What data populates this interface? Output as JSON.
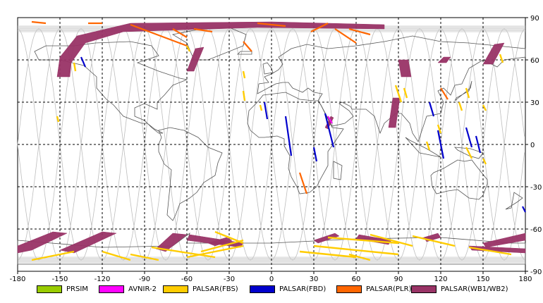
{
  "chart_data": {
    "type": "map",
    "title": "",
    "projection": "equirectangular",
    "xlim": [
      -180,
      180
    ],
    "ylim": [
      -90,
      90
    ],
    "xticks": [
      -180,
      -150,
      -120,
      -90,
      -60,
      -30,
      0,
      30,
      60,
      90,
      120,
      150,
      180
    ],
    "yticks": [
      90,
      60,
      30,
      0,
      -30,
      -60,
      -90
    ],
    "xtick_labels": [
      "-180",
      "-150",
      "-120",
      "-90",
      "-60",
      "-30",
      "0",
      "30",
      "60",
      "90",
      "120",
      "150",
      "180"
    ],
    "ytick_labels": [
      "90",
      "60",
      "30",
      "0",
      "-30",
      "-60",
      "-90"
    ],
    "grid": true,
    "legend_position": "bottom",
    "legend": [
      {
        "name": "PRSIM",
        "color": "#99cc00"
      },
      {
        "name": "AVNIR-2",
        "color": "#ff00ff"
      },
      {
        "name": "PALSAR(FBS)",
        "color": "#ffcc00"
      },
      {
        "name": "PALSAR(FBD)",
        "color": "#0000cc"
      },
      {
        "name": "PALSAR(PLR)",
        "color": "#ff6600"
      },
      {
        "name": "PALSAR(WB1/WB2)",
        "color": "#993366"
      }
    ],
    "wb_swaths": [
      {
        "pts": [
          [
            -152,
            48
          ],
          [
            -150,
            62
          ],
          [
            -138,
            77
          ],
          [
            -100,
            86
          ],
          [
            0,
            87
          ],
          [
            80,
            85
          ],
          [
            80,
            82
          ],
          [
            -10,
            83
          ],
          [
            -105,
            80
          ],
          [
            -132,
            72
          ],
          [
            -142,
            58
          ],
          [
            -143,
            48
          ]
        ]
      },
      {
        "pts": [
          [
            -60,
            52
          ],
          [
            -54,
            68
          ],
          [
            -48,
            69
          ],
          [
            -55,
            52
          ]
        ]
      },
      {
        "pts": [
          [
            92,
            48
          ],
          [
            90,
            60
          ],
          [
            97,
            60
          ],
          [
            99,
            48
          ]
        ]
      },
      {
        "pts": [
          [
            150,
            57
          ],
          [
            158,
            71
          ],
          [
            165,
            72
          ],
          [
            157,
            57
          ]
        ]
      },
      {
        "pts": [
          [
            118,
            58
          ],
          [
            122,
            62
          ],
          [
            127,
            62
          ],
          [
            124,
            58
          ]
        ]
      },
      {
        "pts": [
          [
            83,
            12
          ],
          [
            86,
            33
          ],
          [
            91,
            33
          ],
          [
            88,
            12
          ]
        ]
      },
      {
        "pts": [
          [
            -180,
            -72
          ],
          [
            -155,
            -62
          ],
          [
            -145,
            -63
          ],
          [
            -170,
            -75
          ],
          [
            -180,
            -77
          ]
        ]
      },
      {
        "pts": [
          [
            -150,
            -75
          ],
          [
            -120,
            -62
          ],
          [
            -110,
            -63
          ],
          [
            -140,
            -77
          ]
        ]
      },
      {
        "pts": [
          [
            -82,
            -74
          ],
          [
            -70,
            -63
          ],
          [
            -60,
            -64
          ],
          [
            -75,
            -76
          ]
        ]
      },
      {
        "pts": [
          [
            -58,
            -64
          ],
          [
            -20,
            -70
          ],
          [
            -22,
            -73
          ],
          [
            -60,
            -68
          ]
        ]
      },
      {
        "pts": [
          [
            -45,
            -70
          ],
          [
            -32,
            -66
          ],
          [
            -28,
            -68
          ],
          [
            -40,
            -72
          ]
        ]
      },
      {
        "pts": [
          [
            62,
            -64
          ],
          [
            85,
            -68
          ],
          [
            83,
            -71
          ],
          [
            60,
            -67
          ]
        ]
      },
      {
        "pts": [
          [
            30,
            -68
          ],
          [
            45,
            -63
          ],
          [
            48,
            -65
          ],
          [
            33,
            -70
          ]
        ]
      },
      {
        "pts": [
          [
            108,
            -66
          ],
          [
            118,
            -63
          ],
          [
            120,
            -66
          ],
          [
            110,
            -69
          ]
        ]
      },
      {
        "pts": [
          [
            150,
            -70
          ],
          [
            180,
            -63
          ],
          [
            180,
            -68
          ],
          [
            152,
            -73
          ]
        ]
      },
      {
        "pts": [
          [
            140,
            -72
          ],
          [
            180,
            -74
          ],
          [
            180,
            -77
          ],
          [
            142,
            -75
          ]
        ]
      },
      {
        "pts": [
          [
            38,
            12
          ],
          [
            42,
            20
          ],
          [
            44,
            19
          ],
          [
            40,
            11
          ]
        ]
      }
    ],
    "fbs_lines": [
      [
        [
          -152,
          20
        ],
        [
          -151,
          16
        ]
      ],
      [
        [
          -140,
          58
        ],
        [
          -139,
          52
        ]
      ],
      [
        [
          -20,
          52
        ],
        [
          -19,
          47
        ]
      ],
      [
        [
          -60,
          70
        ],
        [
          -58,
          66
        ]
      ],
      [
        [
          -20,
          38
        ],
        [
          -19,
          31
        ]
      ],
      [
        [
          -8,
          28
        ],
        [
          -7,
          24
        ]
      ],
      [
        [
          88,
          42
        ],
        [
          92,
          30
        ]
      ],
      [
        [
          94,
          40
        ],
        [
          96,
          33
        ]
      ],
      [
        [
          138,
          40
        ],
        [
          140,
          33
        ]
      ],
      [
        [
          133,
          30
        ],
        [
          135,
          24
        ]
      ],
      [
        [
          162,
          64
        ],
        [
          164,
          58
        ]
      ],
      [
        [
          150,
          28
        ],
        [
          152,
          24
        ]
      ],
      [
        [
          118,
          14
        ],
        [
          120,
          8
        ]
      ],
      [
        [
          110,
          2
        ],
        [
          112,
          -4
        ]
      ],
      [
        [
          150,
          -10
        ],
        [
          152,
          -14
        ]
      ],
      [
        [
          138,
          -2
        ],
        [
          142,
          -10
        ]
      ],
      [
        [
          -60,
          -80
        ],
        [
          -20,
          -72
        ]
      ],
      [
        [
          -50,
          -76
        ],
        [
          -20,
          -68
        ]
      ],
      [
        [
          -40,
          -62
        ],
        [
          -20,
          -70
        ]
      ],
      [
        [
          -85,
          -73
        ],
        [
          -40,
          -80
        ]
      ],
      [
        [
          30,
          -72
        ],
        [
          90,
          -78
        ]
      ],
      [
        [
          40,
          -66
        ],
        [
          90,
          -70
        ]
      ],
      [
        [
          70,
          -64
        ],
        [
          100,
          -72
        ]
      ],
      [
        [
          100,
          -65
        ],
        [
          130,
          -72
        ]
      ],
      [
        [
          140,
          -73
        ],
        [
          170,
          -78
        ]
      ],
      [
        [
          -170,
          -82
        ],
        [
          -140,
          -76
        ]
      ],
      [
        [
          -120,
          -76
        ],
        [
          -100,
          -82
        ]
      ],
      [
        [
          55,
          -78
        ],
        [
          70,
          -82
        ]
      ],
      [
        [
          20,
          -76
        ],
        [
          60,
          -80
        ]
      ],
      [
        [
          -100,
          -78
        ],
        [
          -80,
          -82
        ]
      ]
    ],
    "fbd_lines": [
      [
        [
          -135,
          62
        ],
        [
          -132,
          55
        ]
      ],
      [
        [
          -5,
          30
        ],
        [
          -3,
          18
        ]
      ],
      [
        [
          30,
          -2
        ],
        [
          32,
          -12
        ]
      ],
      [
        [
          10,
          20
        ],
        [
          14,
          -8
        ]
      ],
      [
        [
          38,
          22
        ],
        [
          44,
          -2
        ]
      ],
      [
        [
          112,
          30
        ],
        [
          115,
          20
        ]
      ],
      [
        [
          118,
          10
        ],
        [
          122,
          -10
        ]
      ],
      [
        [
          138,
          12
        ],
        [
          142,
          -2
        ]
      ],
      [
        [
          145,
          6
        ],
        [
          148,
          -6
        ]
      ],
      [
        [
          178,
          -44
        ],
        [
          180,
          -48
        ]
      ]
    ],
    "plr_lines": [
      [
        [
          -170,
          87
        ],
        [
          -160,
          86
        ]
      ],
      [
        [
          -130,
          86
        ],
        [
          -120,
          86
        ]
      ],
      [
        [
          -70,
          82
        ],
        [
          -60,
          76
        ]
      ],
      [
        [
          -100,
          85
        ],
        [
          -60,
          70
        ]
      ],
      [
        [
          -20,
          73
        ],
        [
          -14,
          66
        ]
      ],
      [
        [
          28,
          80
        ],
        [
          40,
          86
        ]
      ],
      [
        [
          45,
          82
        ],
        [
          60,
          72
        ]
      ],
      [
        [
          55,
          82
        ],
        [
          70,
          78
        ]
      ],
      [
        [
          20,
          -20
        ],
        [
          25,
          -35
        ]
      ],
      [
        [
          120,
          40
        ],
        [
          125,
          32
        ]
      ],
      [
        [
          -55,
          82
        ],
        [
          -42,
          80
        ]
      ],
      [
        [
          -10,
          86
        ],
        [
          10,
          84
        ]
      ]
    ],
    "avnir_lines": [
      [
        [
          40,
          20
        ],
        [
          43,
          15
        ]
      ]
    ]
  }
}
